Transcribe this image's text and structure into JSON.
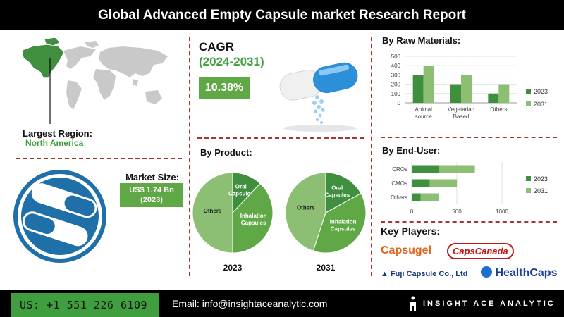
{
  "header": {
    "title": "Global Advanced Empty Capsule market Research Report"
  },
  "region": {
    "label": "Largest Region:",
    "value": "North America"
  },
  "market_size": {
    "label": "Market Size:",
    "line1": "US$ 1.74 Bn",
    "line2": "(2023)"
  },
  "cagr": {
    "label": "CAGR",
    "period": "(2024-2031)",
    "value": "10.38%"
  },
  "sections": {
    "product": "By Product:",
    "raw_materials": "By Raw Materials:",
    "end_user": "By End-User:",
    "key_players": "Key Players:"
  },
  "key_players": [
    "Capsugel",
    "CapsCanada",
    "Fuji Capsule Co., Ltd",
    "HealthCaps"
  ],
  "footer": {
    "phone": "US: +1 551 226 6109",
    "email": "Email: info@insightaceanalytic.com",
    "brand": "INSIGHT ACE ANALYTIC"
  },
  "colors": {
    "dark_green": "#3f8f3f",
    "light_green": "#8cbf73",
    "mid_green": "#5fa845",
    "accent_red": "#a33333"
  },
  "chart_data": [
    {
      "type": "pie",
      "title": "2023",
      "slices": [
        {
          "label": "Others",
          "value": 50
        },
        {
          "label": "Oral Capsules",
          "value": 12
        },
        {
          "label": "Inhalation Capsules",
          "value": 38
        }
      ]
    },
    {
      "type": "pie",
      "title": "2031",
      "slices": [
        {
          "label": "Others",
          "value": 45
        },
        {
          "label": "Oral Capsules",
          "value": 17
        },
        {
          "label": "Inhalation Capsules",
          "value": 38
        }
      ]
    },
    {
      "type": "bar",
      "categories": [
        "Animal source",
        "Vegetarian Based",
        "Others"
      ],
      "category_lines": [
        [
          "Animal",
          "source"
        ],
        [
          "Vegetarian",
          "Based"
        ],
        [
          "Others"
        ]
      ],
      "series": [
        {
          "name": "2023",
          "values": [
            300,
            200,
            100
          ]
        },
        {
          "name": "2031",
          "values": [
            400,
            300,
            200
          ]
        }
      ],
      "ylim": [
        0,
        500
      ],
      "yticks": [
        "0",
        "100",
        "200",
        "300",
        "400",
        "500"
      ],
      "legend": "right"
    },
    {
      "type": "bar",
      "orientation": "horizontal",
      "stacked": true,
      "categories": [
        "CROs",
        "CMOs",
        "Others"
      ],
      "series": [
        {
          "name": "2023",
          "values": [
            300,
            200,
            100
          ]
        },
        {
          "name": "2031",
          "values": [
            400,
            300,
            200
          ]
        }
      ],
      "xlim": [
        0,
        1000
      ],
      "xticks": [
        "0",
        "500",
        "1000"
      ],
      "legend": "right"
    }
  ]
}
